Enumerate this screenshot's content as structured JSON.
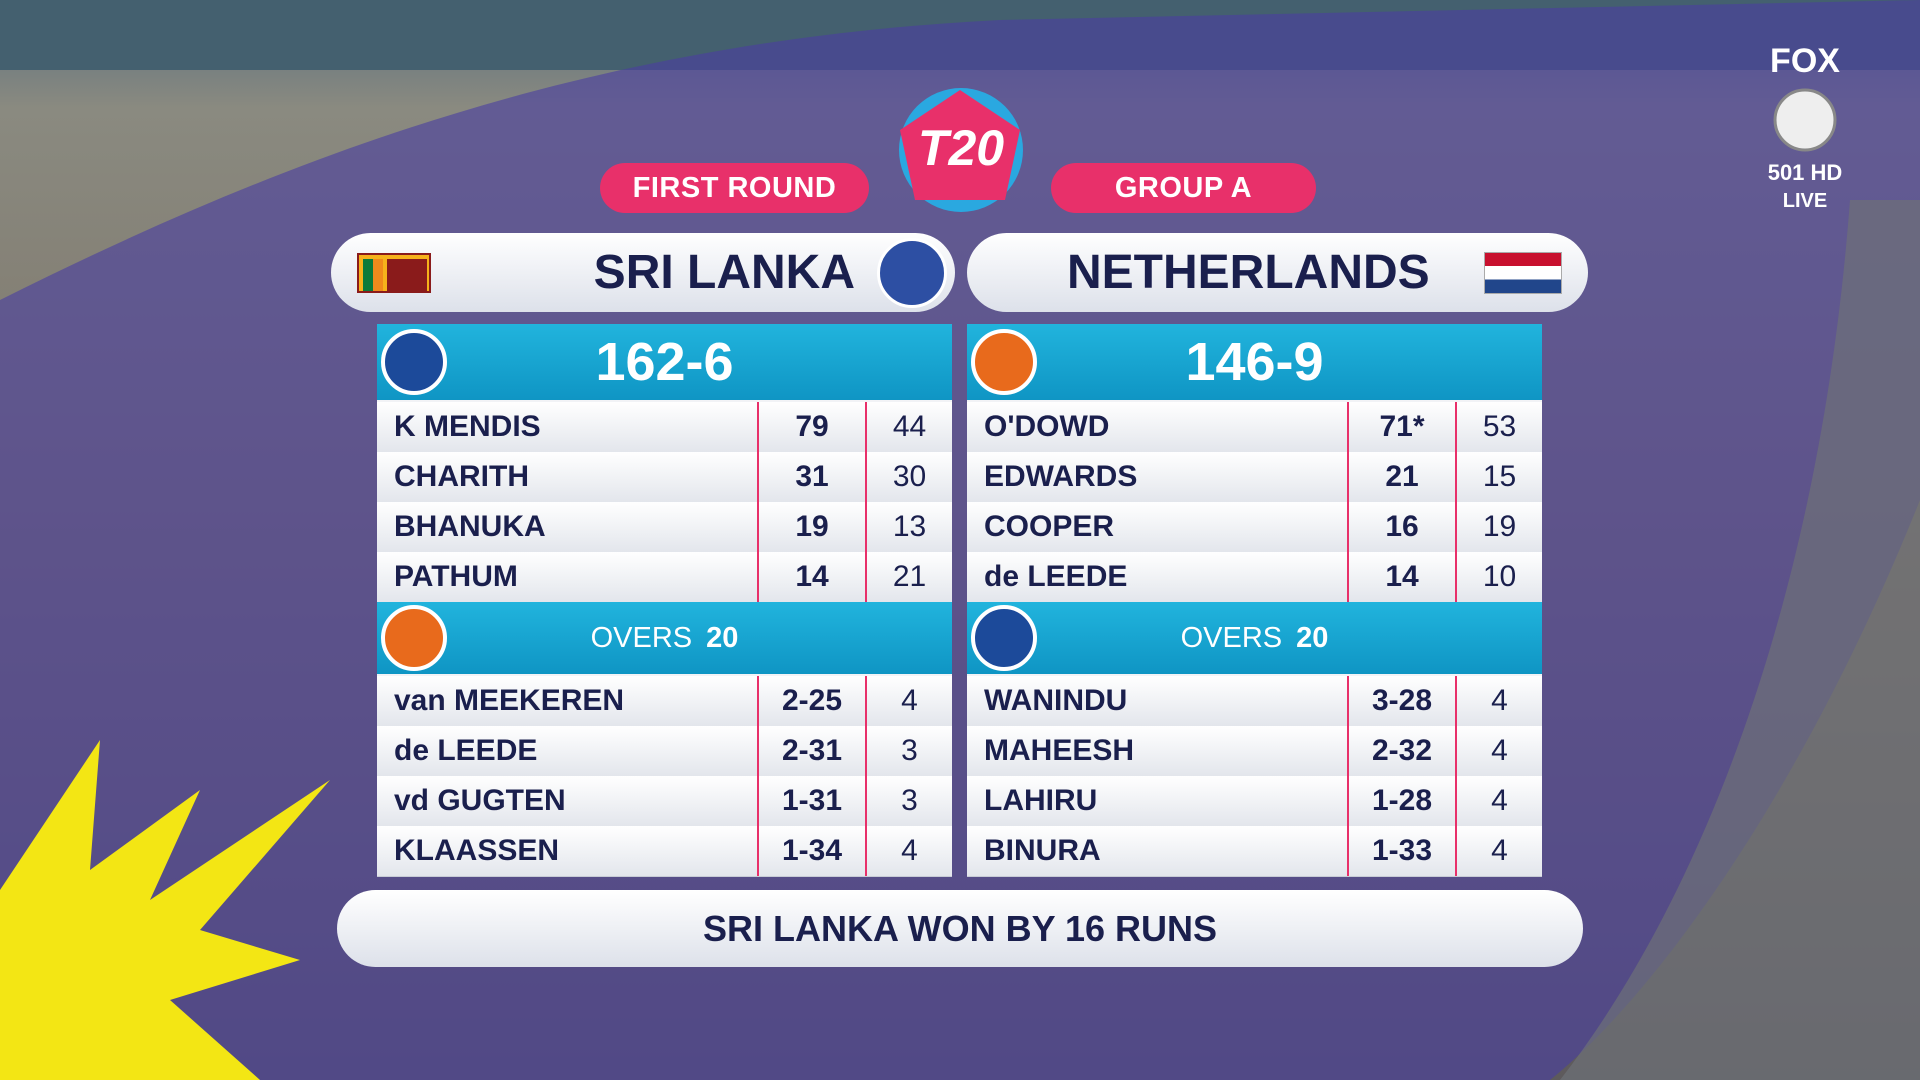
{
  "header": {
    "logo": "T20",
    "round": "FIRST ROUND",
    "group": "GROUP A"
  },
  "broadcaster": {
    "name": "FOX",
    "channel": "501 HD",
    "status": "LIVE"
  },
  "teams": [
    {
      "name": "SRI LANKA",
      "score": "162-6",
      "batting": [
        [
          "K MENDIS",
          "79",
          "44"
        ],
        [
          "CHARITH",
          "31",
          "30"
        ],
        [
          "BHANUKA",
          "19",
          "13"
        ],
        [
          "PATHUM",
          "14",
          "21"
        ]
      ],
      "overs_label": "OVERS",
      "overs": "20",
      "bowling": [
        [
          "van MEEKEREN",
          "2-25",
          "4"
        ],
        [
          "de LEEDE",
          "2-31",
          "3"
        ],
        [
          "vd GUGTEN",
          "1-31",
          "3"
        ],
        [
          "KLAASSEN",
          "1-34",
          "4"
        ]
      ]
    },
    {
      "name": "NETHERLANDS",
      "score": "146-9",
      "batting": [
        [
          "O'DOWD",
          "71*",
          "53"
        ],
        [
          "EDWARDS",
          "21",
          "15"
        ],
        [
          "COOPER",
          "16",
          "19"
        ],
        [
          "de LEEDE",
          "14",
          "10"
        ]
      ],
      "overs_label": "OVERS",
      "overs": "20",
      "bowling": [
        [
          "WANINDU",
          "3-28",
          "4"
        ],
        [
          "MAHEESH",
          "2-32",
          "4"
        ],
        [
          "LAHIRU",
          "1-28",
          "4"
        ],
        [
          "BINURA",
          "1-33",
          "4"
        ]
      ]
    }
  ],
  "result": "SRI LANKA WON BY 16 RUNS"
}
